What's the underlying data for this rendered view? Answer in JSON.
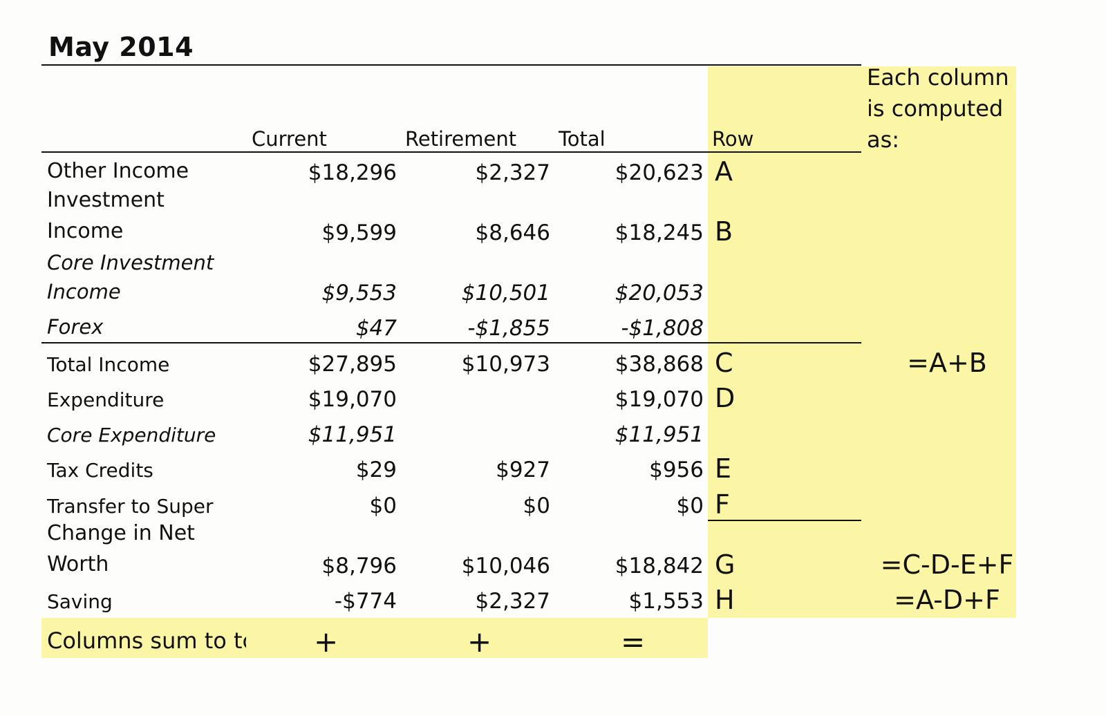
{
  "title": "May 2014",
  "headers": {
    "current": "Current",
    "retirement": "Retirement",
    "total": "Total",
    "row": "Row"
  },
  "note": "Each column is computed as:",
  "rows": [
    {
      "label": "Other Income",
      "current": "$18,296",
      "retirement": "$2,327",
      "total": "$20,623",
      "row": "A",
      "formula": ""
    },
    {
      "label_line1": "Investment",
      "label_line2": "Income",
      "current": "$9,599",
      "retirement": "$8,646",
      "total": "$18,245",
      "row": "B",
      "formula": ""
    },
    {
      "label_line1": "Core Investment",
      "label_line2": "Income",
      "current": "$9,553",
      "retirement": "$10,501",
      "total": "$20,053",
      "row": "",
      "formula": ""
    },
    {
      "label": "Forex",
      "current": "$47",
      "retirement": "-$1,855",
      "total": "-$1,808",
      "row": "",
      "formula": ""
    },
    {
      "label": "Total Income",
      "current": "$27,895",
      "retirement": "$10,973",
      "total": "$38,868",
      "row": "C",
      "formula": "=A+B"
    },
    {
      "label": "Expenditure",
      "current": "$19,070",
      "retirement": "",
      "total": "$19,070",
      "row": "D",
      "formula": ""
    },
    {
      "label": "Core Expenditure",
      "current": "$11,951",
      "retirement": "",
      "total": "$11,951",
      "row": "",
      "formula": ""
    },
    {
      "label": "Tax Credits",
      "current": "$29",
      "retirement": "$927",
      "total": "$956",
      "row": "E",
      "formula": ""
    },
    {
      "label": "Transfer to Super",
      "current": "$0",
      "retirement": "$0",
      "total": "$0",
      "row": "F",
      "formula": ""
    },
    {
      "label_line1": "Change in Net",
      "label_line2": "Worth",
      "current": "$8,796",
      "retirement": "$10,046",
      "total": "$18,842",
      "row": "G",
      "formula": "=C-D-E+F"
    },
    {
      "label": "Saving",
      "current": "-$774",
      "retirement": "$2,327",
      "total": "$1,553",
      "row": "H",
      "formula": "=A-D+F"
    }
  ],
  "footer": {
    "label": "Columns sum to tc",
    "plus1": "+",
    "plus2": "+",
    "equals": "="
  },
  "colors": {
    "highlight": "#fbf5a6",
    "text": "#111111",
    "background": "#fdfdfb"
  }
}
